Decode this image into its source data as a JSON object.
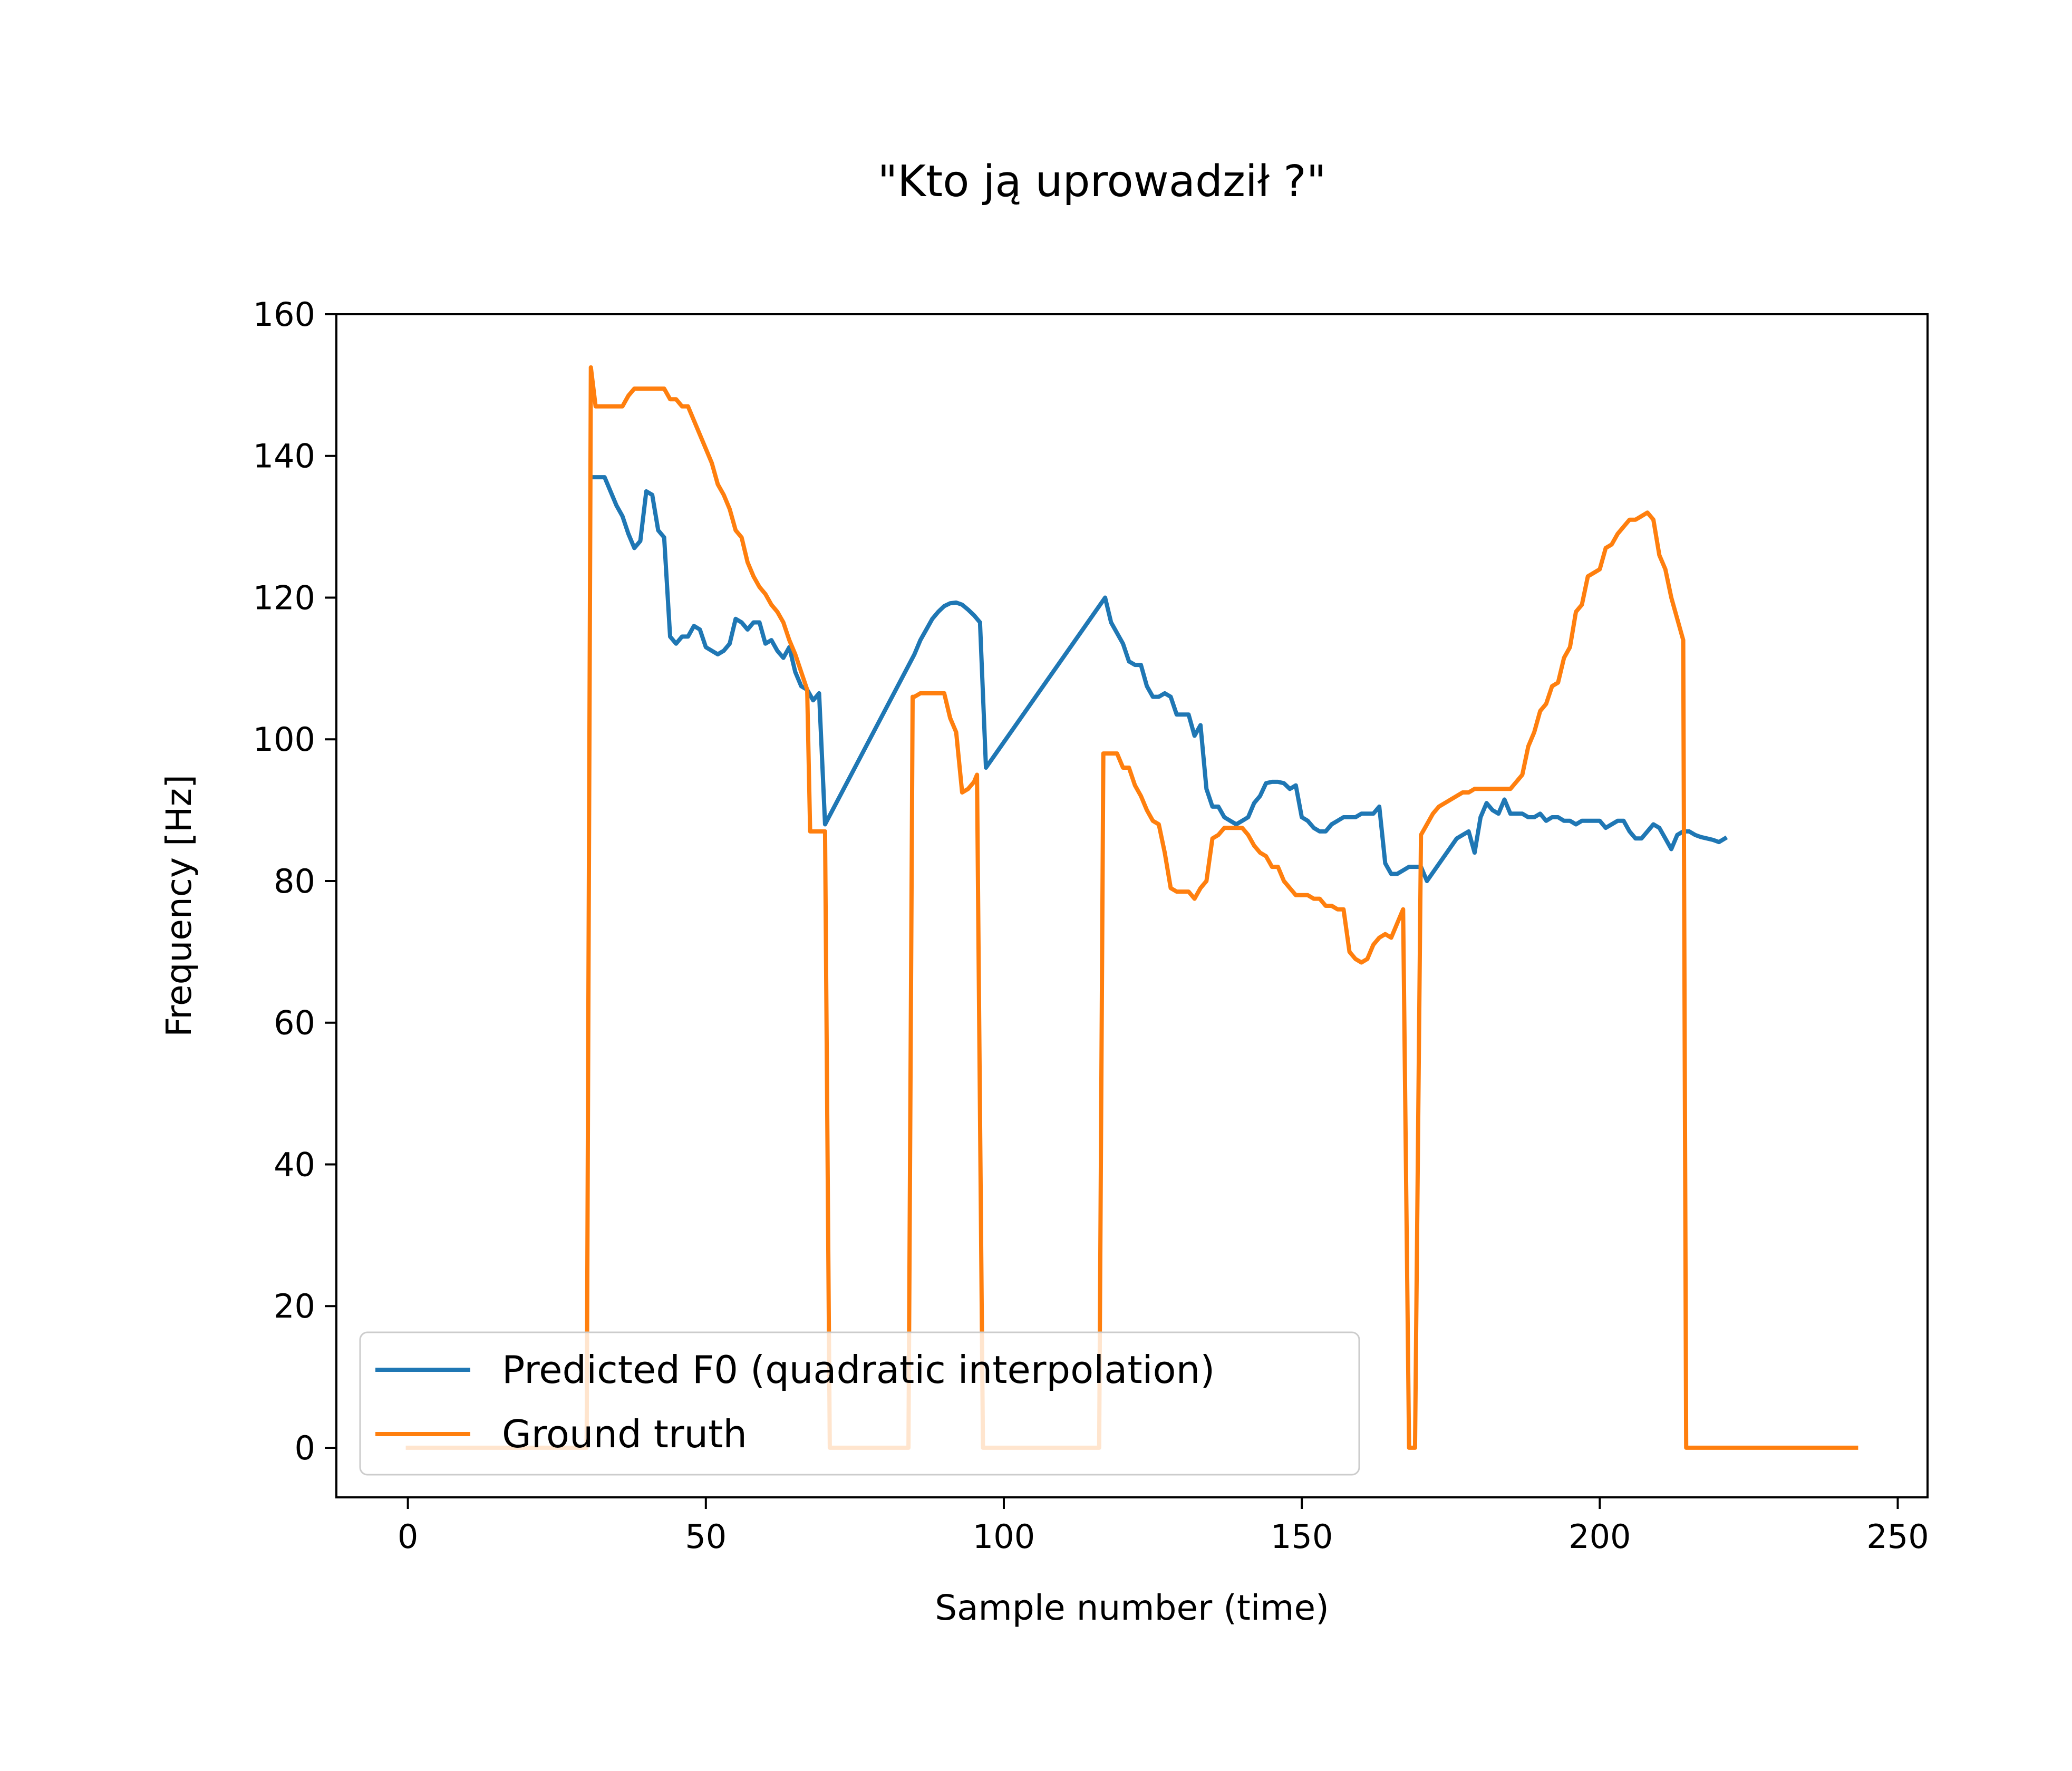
{
  "chart_data": {
    "type": "line",
    "title": "\"Kto ją uprowadził ?\"",
    "xlabel": "Sample number (time)",
    "ylabel": "Frequency [Hz]",
    "xlim": [
      -12,
      255
    ],
    "ylim": [
      -7,
      160
    ],
    "xticks": [
      0,
      50,
      100,
      150,
      200,
      250
    ],
    "yticks": [
      0,
      20,
      40,
      60,
      80,
      100,
      120,
      140,
      160
    ],
    "grid": false,
    "legend_position": "lower-left",
    "series": [
      {
        "name": "Predicted F0 (quadratic interpolation)",
        "color": "#1f77b4",
        "points": [
          [
            31,
            137
          ],
          [
            32,
            137
          ],
          [
            33,
            137
          ],
          [
            34,
            135
          ],
          [
            35,
            133
          ],
          [
            36,
            131.5
          ],
          [
            37,
            129
          ],
          [
            38,
            127
          ],
          [
            39,
            128
          ],
          [
            40,
            135
          ],
          [
            41,
            134.5
          ],
          [
            42,
            129.5
          ],
          [
            43,
            128.5
          ],
          [
            44,
            114.5
          ],
          [
            45,
            113.5
          ],
          [
            46,
            114.5
          ],
          [
            47,
            114.5
          ],
          [
            48,
            116
          ],
          [
            49,
            115.5
          ],
          [
            50,
            113
          ],
          [
            51,
            112.5
          ],
          [
            52,
            112
          ],
          [
            53,
            112.5
          ],
          [
            54,
            113.5
          ],
          [
            55,
            117
          ],
          [
            56,
            116.5
          ],
          [
            57,
            115.5
          ],
          [
            58,
            116.5
          ],
          [
            59,
            116.5
          ],
          [
            60,
            113.5
          ],
          [
            61,
            114
          ],
          [
            62,
            112.5
          ],
          [
            63,
            111.5
          ],
          [
            64,
            113
          ],
          [
            65,
            109.5
          ],
          [
            66,
            107.5
          ],
          [
            67,
            107
          ],
          [
            68,
            105.5
          ],
          [
            69,
            106.5
          ],
          [
            70,
            88
          ],
          [
            85,
            112
          ],
          [
            86,
            114
          ],
          [
            87,
            115.5
          ],
          [
            88,
            117
          ],
          [
            89,
            118
          ],
          [
            90,
            118.8
          ],
          [
            91,
            119.2
          ],
          [
            92,
            119.3
          ],
          [
            93,
            119
          ],
          [
            94,
            118.3
          ],
          [
            95,
            117.5
          ],
          [
            96,
            116.5
          ],
          [
            97,
            96
          ],
          [
            117,
            120
          ],
          [
            118,
            116.5
          ],
          [
            119,
            115
          ],
          [
            120,
            113.5
          ],
          [
            121,
            111
          ],
          [
            122,
            110.5
          ],
          [
            123,
            110.5
          ],
          [
            124,
            107.5
          ],
          [
            125,
            106
          ],
          [
            126,
            106
          ],
          [
            127,
            106.5
          ],
          [
            128,
            106
          ],
          [
            129,
            103.5
          ],
          [
            130,
            103.5
          ],
          [
            131,
            103.5
          ],
          [
            132,
            100.5
          ],
          [
            133,
            102
          ],
          [
            134,
            93
          ],
          [
            135,
            90.5
          ],
          [
            136,
            90.5
          ],
          [
            137,
            89
          ],
          [
            138,
            88.5
          ],
          [
            139,
            88
          ],
          [
            140,
            88.5
          ],
          [
            141,
            89
          ],
          [
            142,
            91
          ],
          [
            143,
            92
          ],
          [
            144,
            93.8
          ],
          [
            145,
            94
          ],
          [
            146,
            94
          ],
          [
            147,
            93.8
          ],
          [
            148,
            93
          ],
          [
            149,
            93.5
          ],
          [
            150,
            89
          ],
          [
            151,
            88.5
          ],
          [
            152,
            87.5
          ],
          [
            153,
            87
          ],
          [
            154,
            87
          ],
          [
            155,
            88
          ],
          [
            156,
            88.5
          ],
          [
            157,
            89
          ],
          [
            158,
            89
          ],
          [
            159,
            89
          ],
          [
            160,
            89.5
          ],
          [
            161,
            89.5
          ],
          [
            162,
            89.5
          ],
          [
            163,
            90.5
          ],
          [
            164,
            82.5
          ],
          [
            165,
            81
          ],
          [
            166,
            81
          ],
          [
            167,
            81.5
          ],
          [
            168,
            82
          ],
          [
            169,
            82
          ],
          [
            170,
            82
          ],
          [
            171,
            80
          ],
          [
            176,
            86
          ],
          [
            177,
            86.5
          ],
          [
            178,
            87
          ],
          [
            179,
            84
          ],
          [
            180,
            89
          ],
          [
            181,
            91
          ],
          [
            182,
            90
          ],
          [
            183,
            89.5
          ],
          [
            184,
            91.5
          ],
          [
            185,
            89.5
          ],
          [
            186,
            89.5
          ],
          [
            187,
            89.5
          ],
          [
            188,
            89
          ],
          [
            189,
            89
          ],
          [
            190,
            89.5
          ],
          [
            191,
            88.5
          ],
          [
            192,
            89
          ],
          [
            193,
            89
          ],
          [
            194,
            88.5
          ],
          [
            195,
            88.5
          ],
          [
            196,
            88
          ],
          [
            197,
            88.5
          ],
          [
            198,
            88.5
          ],
          [
            199,
            88.5
          ],
          [
            200,
            88.5
          ],
          [
            201,
            87.5
          ],
          [
            202,
            88
          ],
          [
            203,
            88.5
          ],
          [
            204,
            88.5
          ],
          [
            205,
            87
          ],
          [
            206,
            86
          ],
          [
            207,
            86
          ],
          [
            208,
            87
          ],
          [
            209,
            88
          ],
          [
            210,
            87.5
          ],
          [
            211,
            86
          ],
          [
            212,
            84.5
          ],
          [
            213,
            86.5
          ],
          [
            214,
            87
          ],
          [
            215,
            87
          ],
          [
            216,
            86.5
          ],
          [
            217,
            86.2
          ],
          [
            218,
            86
          ],
          [
            219,
            85.8
          ],
          [
            220,
            85.5
          ],
          [
            221,
            86
          ]
        ]
      },
      {
        "name": "Ground truth",
        "color": "#ff7f0e",
        "points": [
          [
            0,
            0
          ],
          [
            30,
            0
          ],
          [
            30.7,
            152.5
          ],
          [
            31.5,
            147
          ],
          [
            32,
            147
          ],
          [
            35,
            147
          ],
          [
            36,
            147
          ],
          [
            37,
            148.5
          ],
          [
            38,
            149.5
          ],
          [
            39,
            149.5
          ],
          [
            40,
            149.5
          ],
          [
            41,
            149.5
          ],
          [
            42,
            149.5
          ],
          [
            43,
            149.5
          ],
          [
            44,
            148
          ],
          [
            45,
            148
          ],
          [
            46,
            147
          ],
          [
            47,
            147
          ],
          [
            48,
            145
          ],
          [
            49,
            143
          ],
          [
            50,
            141
          ],
          [
            51,
            139
          ],
          [
            52,
            136
          ],
          [
            53,
            134.5
          ],
          [
            54,
            132.5
          ],
          [
            55,
            129.5
          ],
          [
            56,
            128.5
          ],
          [
            57,
            125
          ],
          [
            58,
            123
          ],
          [
            59,
            121.5
          ],
          [
            60,
            120.5
          ],
          [
            61,
            119
          ],
          [
            62,
            118
          ],
          [
            63,
            116.5
          ],
          [
            64,
            114
          ],
          [
            65,
            112
          ],
          [
            66,
            109.5
          ],
          [
            67,
            107
          ],
          [
            67.5,
            87
          ],
          [
            69,
            87
          ],
          [
            70,
            87
          ],
          [
            70.8,
            0
          ],
          [
            84,
            0
          ],
          [
            84.7,
            106
          ],
          [
            85,
            106
          ],
          [
            86,
            106.5
          ],
          [
            87,
            106.5
          ],
          [
            88,
            106.5
          ],
          [
            89,
            106.5
          ],
          [
            90,
            106.5
          ],
          [
            91,
            103
          ],
          [
            92,
            101
          ],
          [
            93,
            92.5
          ],
          [
            94,
            93
          ],
          [
            95,
            94
          ],
          [
            95.5,
            95
          ],
          [
            96.5,
            0
          ],
          [
            116,
            0
          ],
          [
            116.7,
            98
          ],
          [
            117,
            98
          ],
          [
            118,
            98
          ],
          [
            119,
            98
          ],
          [
            120,
            96
          ],
          [
            121,
            96
          ],
          [
            122,
            93.5
          ],
          [
            123,
            92
          ],
          [
            124,
            90
          ],
          [
            125,
            88.5
          ],
          [
            126,
            88
          ],
          [
            127,
            84
          ],
          [
            128,
            79
          ],
          [
            129,
            78.5
          ],
          [
            130,
            78.5
          ],
          [
            131,
            78.5
          ],
          [
            132,
            77.5
          ],
          [
            133,
            79
          ],
          [
            134,
            80
          ],
          [
            135,
            86
          ],
          [
            136,
            86.5
          ],
          [
            137,
            87.5
          ],
          [
            138,
            87.5
          ],
          [
            139,
            87.5
          ],
          [
            140,
            87.5
          ],
          [
            141,
            86.5
          ],
          [
            142,
            85
          ],
          [
            143,
            84
          ],
          [
            144,
            83.5
          ],
          [
            145,
            82
          ],
          [
            146,
            82
          ],
          [
            147,
            80
          ],
          [
            148,
            79
          ],
          [
            149,
            78
          ],
          [
            150,
            78
          ],
          [
            151,
            78
          ],
          [
            152,
            77.5
          ],
          [
            153,
            77.5
          ],
          [
            154,
            76.5
          ],
          [
            155,
            76.5
          ],
          [
            156,
            76
          ],
          [
            157,
            76
          ],
          [
            158,
            70
          ],
          [
            159,
            69
          ],
          [
            160,
            68.5
          ],
          [
            161,
            69
          ],
          [
            162,
            71
          ],
          [
            163,
            72
          ],
          [
            164,
            72.5
          ],
          [
            165,
            72
          ],
          [
            166,
            74
          ],
          [
            167,
            76
          ],
          [
            168,
            0
          ],
          [
            169,
            0
          ],
          [
            170,
            86.5
          ],
          [
            171,
            88
          ],
          [
            172,
            89.5
          ],
          [
            173,
            90.5
          ],
          [
            174,
            91
          ],
          [
            175,
            91.5
          ],
          [
            176,
            92
          ],
          [
            177,
            92.5
          ],
          [
            178,
            92.5
          ],
          [
            179,
            93
          ],
          [
            180,
            93
          ],
          [
            181,
            93
          ],
          [
            182,
            93
          ],
          [
            183,
            93
          ],
          [
            184,
            93
          ],
          [
            185,
            93
          ],
          [
            186,
            94
          ],
          [
            187,
            95
          ],
          [
            188,
            99
          ],
          [
            189,
            101
          ],
          [
            190,
            104
          ],
          [
            191,
            105
          ],
          [
            192,
            107.5
          ],
          [
            193,
            108
          ],
          [
            194,
            111.5
          ],
          [
            195,
            113
          ],
          [
            196,
            118
          ],
          [
            197,
            119
          ],
          [
            198,
            123
          ],
          [
            199,
            123.5
          ],
          [
            200,
            124
          ],
          [
            201,
            127
          ],
          [
            202,
            127.5
          ],
          [
            203,
            129
          ],
          [
            204,
            130
          ],
          [
            205,
            131
          ],
          [
            206,
            131
          ],
          [
            207,
            131.5
          ],
          [
            208,
            132
          ],
          [
            209,
            131
          ],
          [
            210,
            126
          ],
          [
            211,
            124
          ],
          [
            212,
            120
          ],
          [
            213,
            117
          ],
          [
            214,
            114
          ],
          [
            214.5,
            0
          ],
          [
            220,
            0
          ],
          [
            243,
            0
          ]
        ]
      }
    ]
  }
}
